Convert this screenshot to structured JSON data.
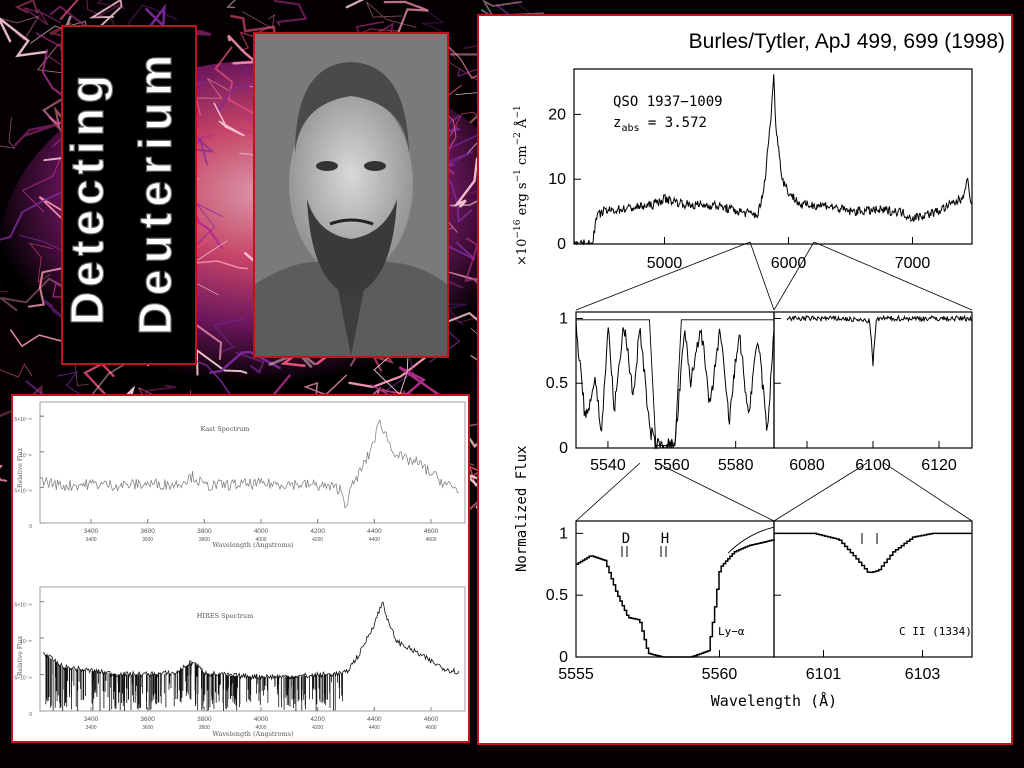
{
  "slide": {
    "title_line1": "Detecting",
    "title_line2": "Deuterium",
    "colors": {
      "frame": "#c0141c",
      "background": "#000000"
    }
  },
  "portrait": {
    "icon": "person-portrait-icon"
  },
  "right_figure": {
    "citation": "Burles/Tytler, ApJ 499, 699 (1998)",
    "top_label1": "QSO 1937−1009",
    "top_label2": "z",
    "top_label2_sub": "abs",
    "top_label2_val": " = 3.572",
    "top_ylabel_a": "×10",
    "top_ylabel_b": "−16",
    "top_ylabel_c": " erg s",
    "top_ylabel_d": "−1",
    "top_ylabel_e": " cm",
    "top_ylabel_f": "−2",
    "top_ylabel_g": " Å",
    "top_ylabel_h": "−1",
    "norm_flux_label": "Normalized Flux",
    "xlabel": "Wavelength (Å)",
    "d_label": "D",
    "h_label": "H",
    "lya_label": "Ly−α",
    "cii_label": "C II (1334)"
  },
  "left_figure": {
    "kast_title": "Kast Spectrum",
    "hires_title": "HIRES Spectrum",
    "ylabel": "Relative Flux",
    "ytick_labels": [
      "0",
      "5×10⁻¹⁶",
      "10⁻¹⁵",
      "1.5×10⁻¹⁵"
    ],
    "xlabel": "Wavelength (Angstroms)"
  },
  "chart_data": [
    {
      "type": "line",
      "name": "Kast Spectrum",
      "xlabel": "Wavelength (Angstroms)",
      "ylabel": "Relative Flux",
      "xlim": [
        3220,
        4720
      ],
      "ylim": [
        0,
        1.7e-15
      ],
      "xticks": [
        3400,
        3600,
        3800,
        4000,
        4200,
        4400,
        4600
      ],
      "yticks": [
        0,
        5e-16,
        1e-15,
        1.5e-15
      ],
      "x": [
        3220,
        3300,
        3400,
        3500,
        3600,
        3700,
        3760,
        3800,
        3900,
        4000,
        4100,
        4200,
        4280,
        4300,
        4320,
        4380,
        4420,
        4440,
        4460,
        4500,
        4550,
        4600,
        4650,
        4700
      ],
      "y": [
        6e-16,
        5.2e-16,
        5.5e-16,
        5.3e-16,
        5.5e-16,
        5.4e-16,
        6.6e-16,
        5.2e-16,
        5.4e-16,
        5.5e-16,
        5.5e-16,
        5.3e-16,
        4.8e-16,
        2.5e-16,
        5e-16,
        9.5e-16,
        1.42e-15,
        1.25e-15,
        1.05e-15,
        9e-16,
        8.5e-16,
        7e-16,
        5.5e-16,
        4.5e-16
      ]
    },
    {
      "type": "line",
      "name": "HIRES Spectrum",
      "xlabel": "Wavelength (Angstroms)",
      "ylabel": "Relative Flux",
      "xlim": [
        3220,
        4720
      ],
      "ylim": [
        0,
        1.7e-15
      ],
      "xticks": [
        3400,
        3600,
        3800,
        4000,
        4200,
        4400,
        4600
      ],
      "yticks": [
        0,
        5e-16,
        1e-15,
        1.5e-15
      ],
      "x": [
        3230,
        3300,
        3400,
        3500,
        3600,
        3700,
        3760,
        3800,
        3900,
        4000,
        4100,
        4200,
        4300,
        4350,
        4400,
        4430,
        4450,
        4480,
        4550,
        4600,
        4650,
        4700
      ],
      "y": [
        8e-16,
        6e-16,
        5.5e-16,
        5e-16,
        5e-16,
        5.2e-16,
        6.8e-16,
        5.2e-16,
        4.8e-16,
        4.7e-16,
        4.7e-16,
        4.9e-16,
        5.2e-16,
        8e-16,
        1.2e-15,
        1.5e-15,
        1.2e-15,
        9.5e-16,
        8e-16,
        6.8e-16,
        5.8e-16,
        5.3e-16
      ]
    },
    {
      "type": "line",
      "name": "QSO 1937−1009 spectrum",
      "xlabel": "",
      "ylabel": "×10⁻¹⁶ erg s⁻¹ cm⁻² Å⁻¹",
      "xlim": [
        4270,
        7480
      ],
      "ylim": [
        0,
        27
      ],
      "xticks": [
        5000,
        6000,
        7000
      ],
      "yticks": [
        0,
        10,
        20
      ],
      "x": [
        4270,
        4420,
        4450,
        4500,
        4700,
        4900,
        5000,
        5200,
        5400,
        5600,
        5750,
        5800,
        5860,
        5880,
        5900,
        5950,
        6000,
        6100,
        6300,
        6500,
        6700,
        6900,
        7000,
        7200,
        7400,
        7440,
        7480
      ],
      "y": [
        0,
        0,
        4,
        5,
        5.5,
        6,
        7,
        6,
        6,
        5,
        4.5,
        8,
        20,
        26,
        18,
        10,
        8,
        6,
        6,
        5,
        5.2,
        5,
        4,
        5,
        7,
        10,
        6
      ]
    },
    {
      "type": "line",
      "name": "Normalized flux 5530–5592",
      "xlim": [
        5530,
        5592
      ],
      "ylim": [
        0,
        1.05
      ],
      "xticks": [
        5540,
        5560,
        5580
      ],
      "yticks": [
        0,
        0.5,
        1
      ],
      "x": [
        5530,
        5533,
        5536,
        5538,
        5540,
        5542,
        5545,
        5548,
        5550,
        5553,
        5555,
        5558,
        5561,
        5564,
        5566,
        5569,
        5572,
        5575,
        5578,
        5581,
        5584,
        5587,
        5590,
        5592
      ],
      "y": [
        0.95,
        0.2,
        0.55,
        0.1,
        0.95,
        0.3,
        0.95,
        0.4,
        0.95,
        0.15,
        0.02,
        0.02,
        0.02,
        0.9,
        0.5,
        0.95,
        0.3,
        0.92,
        0.2,
        0.9,
        0.25,
        0.85,
        0.1,
        0.95
      ]
    },
    {
      "type": "line",
      "name": "Normalized flux 6070–6130",
      "xlim": [
        6070,
        6130
      ],
      "ylim": [
        0,
        1.05
      ],
      "xticks": [
        6080,
        6100,
        6120
      ],
      "yticks": [
        0,
        0.5,
        1
      ],
      "x": [
        6074,
        6080,
        6090,
        6099,
        6100,
        6101,
        6102,
        6110,
        6120,
        6130
      ],
      "y": [
        1.0,
        1.0,
        1.0,
        0.98,
        0.65,
        0.98,
        1.0,
        1.0,
        1.0,
        1.0
      ]
    },
    {
      "type": "line",
      "name": "Ly−α (D, H)",
      "xlabel": "Wavelength (Å)",
      "xlim": [
        5555,
        5561.9
      ],
      "ylim": [
        0,
        1.1
      ],
      "xticks": [
        5555,
        5560
      ],
      "yticks": [
        0,
        0.5,
        1
      ],
      "x": [
        5555,
        5555.5,
        5556.0,
        5556.4,
        5556.8,
        5557.2,
        5557.5,
        5558.0,
        5559.0,
        5559.6,
        5559.8,
        5560.0,
        5560.5,
        5561.0,
        5561.9
      ],
      "y": [
        0.75,
        0.82,
        0.78,
        0.52,
        0.32,
        0.3,
        0.03,
        0.0,
        0.0,
        0.05,
        0.35,
        0.72,
        0.85,
        0.9,
        0.95
      ]
    },
    {
      "type": "line",
      "name": "C II (1334)",
      "xlabel": "Wavelength (Å)",
      "xlim": [
        6100.0,
        6104.0
      ],
      "ylim": [
        0,
        1.1
      ],
      "xticks": [
        6101,
        6103
      ],
      "yticks": [
        0,
        0.5,
        1
      ],
      "x": [
        6100.0,
        6100.8,
        6101.3,
        6101.6,
        6101.9,
        6102.1,
        6102.4,
        6102.8,
        6103.2,
        6104.0
      ],
      "y": [
        1.0,
        1.0,
        0.95,
        0.82,
        0.68,
        0.7,
        0.85,
        0.97,
        1.0,
        1.0
      ]
    }
  ]
}
